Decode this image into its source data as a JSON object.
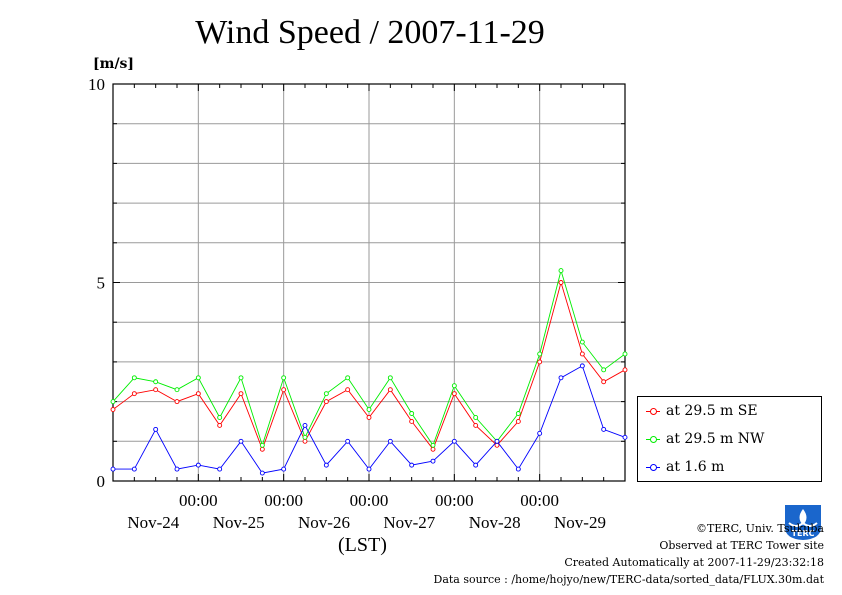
{
  "chart_data": {
    "type": "line",
    "title": "Wind Speed / 2007-11-29",
    "ylabel": "[m/s]",
    "xlabel": "(LST)",
    "ylim": [
      0,
      10
    ],
    "yticks": [
      "0",
      "5",
      "10"
    ],
    "x_tick_time": "00:00",
    "x_tick_dates": [
      "Nov-24",
      "Nov-25",
      "Nov-26",
      "Nov-27",
      "Nov-28",
      "Nov-29"
    ],
    "x_range_days": [
      -1.0,
      5.0
    ],
    "grid": true,
    "legend_placement": "right-bottom",
    "series": [
      {
        "name": "at 29.5 m SE",
        "color": "#ff0000",
        "x": [
          -1.0,
          -0.75,
          -0.5,
          -0.25,
          0.0,
          0.25,
          0.5,
          0.75,
          1.0,
          1.25,
          1.5,
          1.75,
          2.0,
          2.25,
          2.5,
          2.75,
          3.0,
          3.25,
          3.5,
          3.75,
          4.0,
          4.25,
          4.5,
          4.75,
          5.0
        ],
        "values": [
          1.8,
          2.2,
          2.3,
          2.0,
          2.2,
          1.4,
          2.2,
          0.8,
          2.3,
          1.0,
          2.0,
          2.3,
          1.6,
          2.3,
          1.5,
          0.8,
          2.2,
          1.4,
          0.9,
          1.5,
          3.0,
          5.0,
          3.2,
          2.5,
          2.8
        ]
      },
      {
        "name": "at 29.5 m NW",
        "color": "#00ee00",
        "x": [
          -1.0,
          -0.75,
          -0.5,
          -0.25,
          0.0,
          0.25,
          0.5,
          0.75,
          1.0,
          1.25,
          1.5,
          1.75,
          2.0,
          2.25,
          2.5,
          2.75,
          3.0,
          3.25,
          3.5,
          3.75,
          4.0,
          4.25,
          4.5,
          4.75,
          5.0
        ],
        "values": [
          2.0,
          2.6,
          2.5,
          2.3,
          2.6,
          1.6,
          2.6,
          0.9,
          2.6,
          1.1,
          2.2,
          2.6,
          1.8,
          2.6,
          1.7,
          0.9,
          2.4,
          1.6,
          1.0,
          1.7,
          3.2,
          5.3,
          3.5,
          2.8,
          3.2
        ]
      },
      {
        "name": "at 1.6 m",
        "color": "#0000ff",
        "x": [
          -1.0,
          -0.75,
          -0.5,
          -0.25,
          0.0,
          0.25,
          0.5,
          0.75,
          1.0,
          1.25,
          1.5,
          1.75,
          2.0,
          2.25,
          2.5,
          2.75,
          3.0,
          3.25,
          3.5,
          3.75,
          4.0,
          4.25,
          4.5,
          4.75,
          5.0
        ],
        "values": [
          0.3,
          0.3,
          1.3,
          0.3,
          0.4,
          0.3,
          1.0,
          0.2,
          0.3,
          1.4,
          0.4,
          1.0,
          0.3,
          1.0,
          0.4,
          0.5,
          1.0,
          0.4,
          1.0,
          0.3,
          1.2,
          2.6,
          2.9,
          1.3,
          1.1
        ]
      }
    ]
  },
  "footer": {
    "copyright": "©TERC, Univ. Tsukuba",
    "observed": "Observed at TERC Tower site",
    "created": "Created Automatically at 2007-11-29/23:32:18",
    "source": "Data source : /home/hojyo/new/TERC-data/sorted_data/FLUX.30m.dat"
  },
  "logo": {
    "text": "TERC",
    "color": "#1a66cc"
  }
}
